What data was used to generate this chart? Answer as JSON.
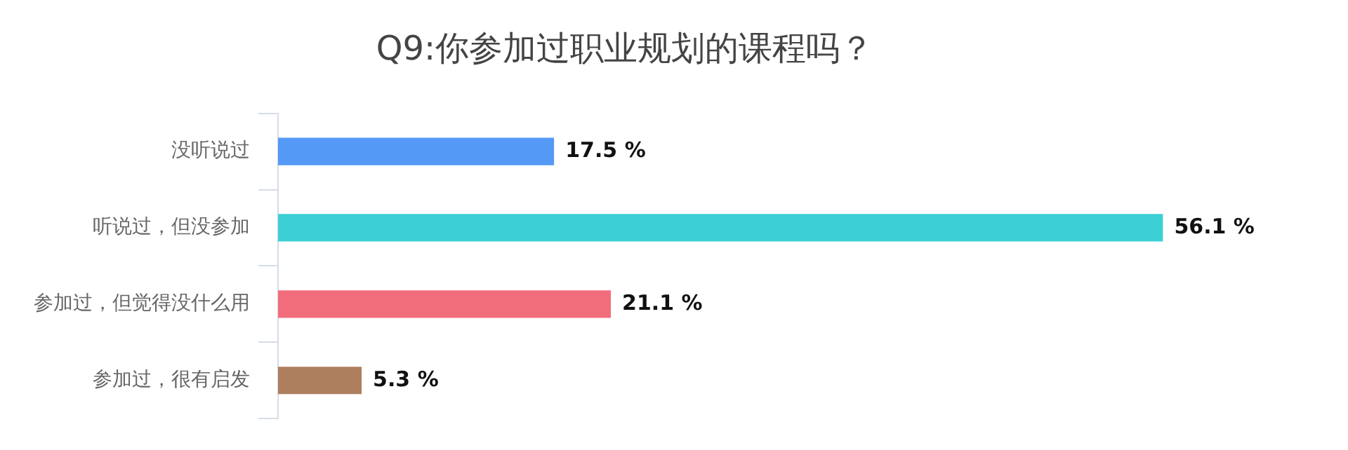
{
  "chart_data": {
    "type": "bar",
    "orientation": "horizontal",
    "title": "Q9:你参加过职业规划的课程吗？",
    "categories": [
      "没听说过",
      "听说过，但没参加",
      "参加过，但觉得没什么用",
      "参加过，很有启发"
    ],
    "values": [
      17.5,
      56.1,
      21.1,
      5.3
    ],
    "colors": [
      "#5599f7",
      "#3ccfd5",
      "#f26d7c",
      "#ae7f5e"
    ],
    "value_labels": [
      "17.5 %",
      "56.1 %",
      "21.1 %",
      "5.3 %"
    ],
    "legend": false
  }
}
